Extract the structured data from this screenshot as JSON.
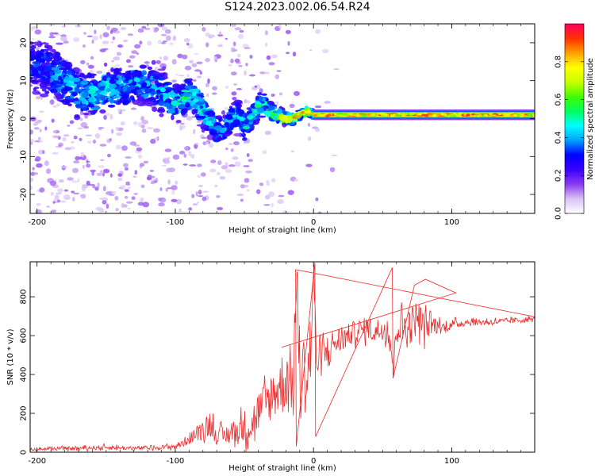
{
  "title": "S124.2023.002.06.54.R24",
  "chart_data": [
    {
      "type": "heatmap",
      "xlabel": "Height of straight line (km)",
      "ylabel": "Frequency (Hz)",
      "xlim": [
        -205,
        160
      ],
      "ylim": [
        -25,
        25
      ],
      "xticks": [
        -200,
        -100,
        0,
        100
      ],
      "yticks": [
        -20,
        -10,
        0,
        10,
        20
      ],
      "grid": false,
      "colorbar": {
        "label": "Normalized spectral amplitude",
        "range": [
          0,
          1
        ],
        "ticks": [
          0.0,
          0.2,
          0.4,
          0.6,
          0.8
        ],
        "tick_labels": [
          "0.0",
          "0.2",
          "0.4",
          "0.6",
          "0.8"
        ],
        "colors": [
          "#ffffff",
          "#d9c2f5",
          "#8a3cf0",
          "#3a00ff",
          "#0000ff",
          "#00a0ff",
          "#00ffff",
          "#00ff60",
          "#40ff00",
          "#c8ff00",
          "#ffff00",
          "#ffa000",
          "#ff3000",
          "#ff0060"
        ]
      },
      "ridge": {
        "x": [
          -200,
          -190,
          -180,
          -170,
          -160,
          -150,
          -140,
          -130,
          -120,
          -110,
          -100,
          -95,
          -90,
          -85,
          -80,
          -75,
          -70,
          -65,
          -60,
          -55,
          -50,
          -45,
          -40,
          -35,
          -30,
          -25,
          -20,
          -15,
          -10,
          -5,
          0,
          10,
          20,
          40,
          60,
          80,
          100,
          120,
          140,
          160
        ],
        "y": [
          14,
          12,
          10,
          7,
          6,
          8,
          8,
          9,
          9,
          7,
          4,
          5,
          7,
          5,
          2,
          0,
          -3,
          -3,
          0,
          1,
          -2,
          0,
          3,
          4,
          1,
          1,
          0,
          0,
          1,
          2,
          1,
          1,
          1,
          1,
          1,
          1,
          1,
          1,
          1,
          1
        ],
        "amplitude": [
          0.2,
          0.25,
          0.3,
          0.3,
          0.35,
          0.35,
          0.3,
          0.3,
          0.3,
          0.3,
          0.35,
          0.4,
          0.4,
          0.4,
          0.35,
          0.35,
          0.3,
          0.3,
          0.3,
          0.3,
          0.35,
          0.35,
          0.4,
          0.45,
          0.5,
          0.55,
          0.6,
          0.6,
          0.65,
          0.6,
          0.6,
          0.65,
          0.7,
          0.75,
          0.8,
          0.85,
          0.9,
          0.9,
          0.9,
          0.9
        ],
        "spread_hz": [
          8,
          8,
          7,
          7,
          6,
          6,
          6,
          6,
          6,
          6,
          5,
          5,
          5,
          5,
          5,
          4,
          4,
          4,
          4,
          4,
          4,
          3.5,
          3.5,
          3,
          2.5,
          2,
          1.5,
          1.5,
          1.2,
          1.2,
          1,
          0.8,
          0.8,
          0.6,
          0.6,
          0.5,
          0.5,
          0.5,
          0.5,
          0.5
        ]
      }
    },
    {
      "type": "line",
      "xlabel": "Height of straight line (km)",
      "ylabel": "SNR (10 * v/v)",
      "xlim": [
        -205,
        160
      ],
      "ylim": [
        0,
        980
      ],
      "xticks": [
        -200,
        -100,
        0,
        100
      ],
      "yticks": [
        0,
        200,
        400,
        600,
        800
      ],
      "grid": false,
      "series": [
        {
          "color": "#ee2a2a",
          "x": [
            -205,
            -190,
            -170,
            -150,
            -130,
            -110,
            -100,
            -95,
            -90,
            -85,
            -80,
            -75,
            -70,
            -65,
            -60,
            -55,
            -50,
            -45,
            -40,
            -35,
            -30,
            -25,
            -20,
            -15,
            -12,
            -10,
            -8,
            -5,
            -2,
            0,
            2,
            5,
            10,
            15,
            20,
            25,
            30,
            35,
            40,
            45,
            50,
            55,
            58,
            60,
            65,
            70,
            75,
            80,
            85,
            90,
            95,
            100,
            105,
            110,
            120,
            130,
            140,
            150,
            160
          ],
          "y": [
            15,
            18,
            20,
            25,
            20,
            25,
            30,
            45,
            70,
            90,
            120,
            150,
            90,
            80,
            100,
            110,
            130,
            140,
            210,
            240,
            300,
            330,
            380,
            360,
            900,
            380,
            430,
            380,
            500,
            960,
            480,
            480,
            520,
            560,
            580,
            600,
            620,
            630,
            640,
            620,
            640,
            620,
            400,
            700,
            640,
            650,
            700,
            650,
            660,
            650,
            640,
            660,
            660,
            670,
            670,
            670,
            675,
            680,
            685
          ],
          "noise": [
            6,
            8,
            10,
            12,
            10,
            12,
            14,
            20,
            30,
            40,
            60,
            70,
            50,
            50,
            60,
            70,
            90,
            100,
            110,
            120,
            130,
            150,
            180,
            200,
            60,
            200,
            200,
            200,
            180,
            60,
            120,
            100,
            90,
            80,
            70,
            60,
            60,
            60,
            60,
            70,
            60,
            80,
            30,
            150,
            120,
            100,
            90,
            80,
            60,
            40,
            30,
            25,
            20,
            20,
            18,
            16,
            15,
            15,
            15
          ]
        }
      ]
    }
  ]
}
